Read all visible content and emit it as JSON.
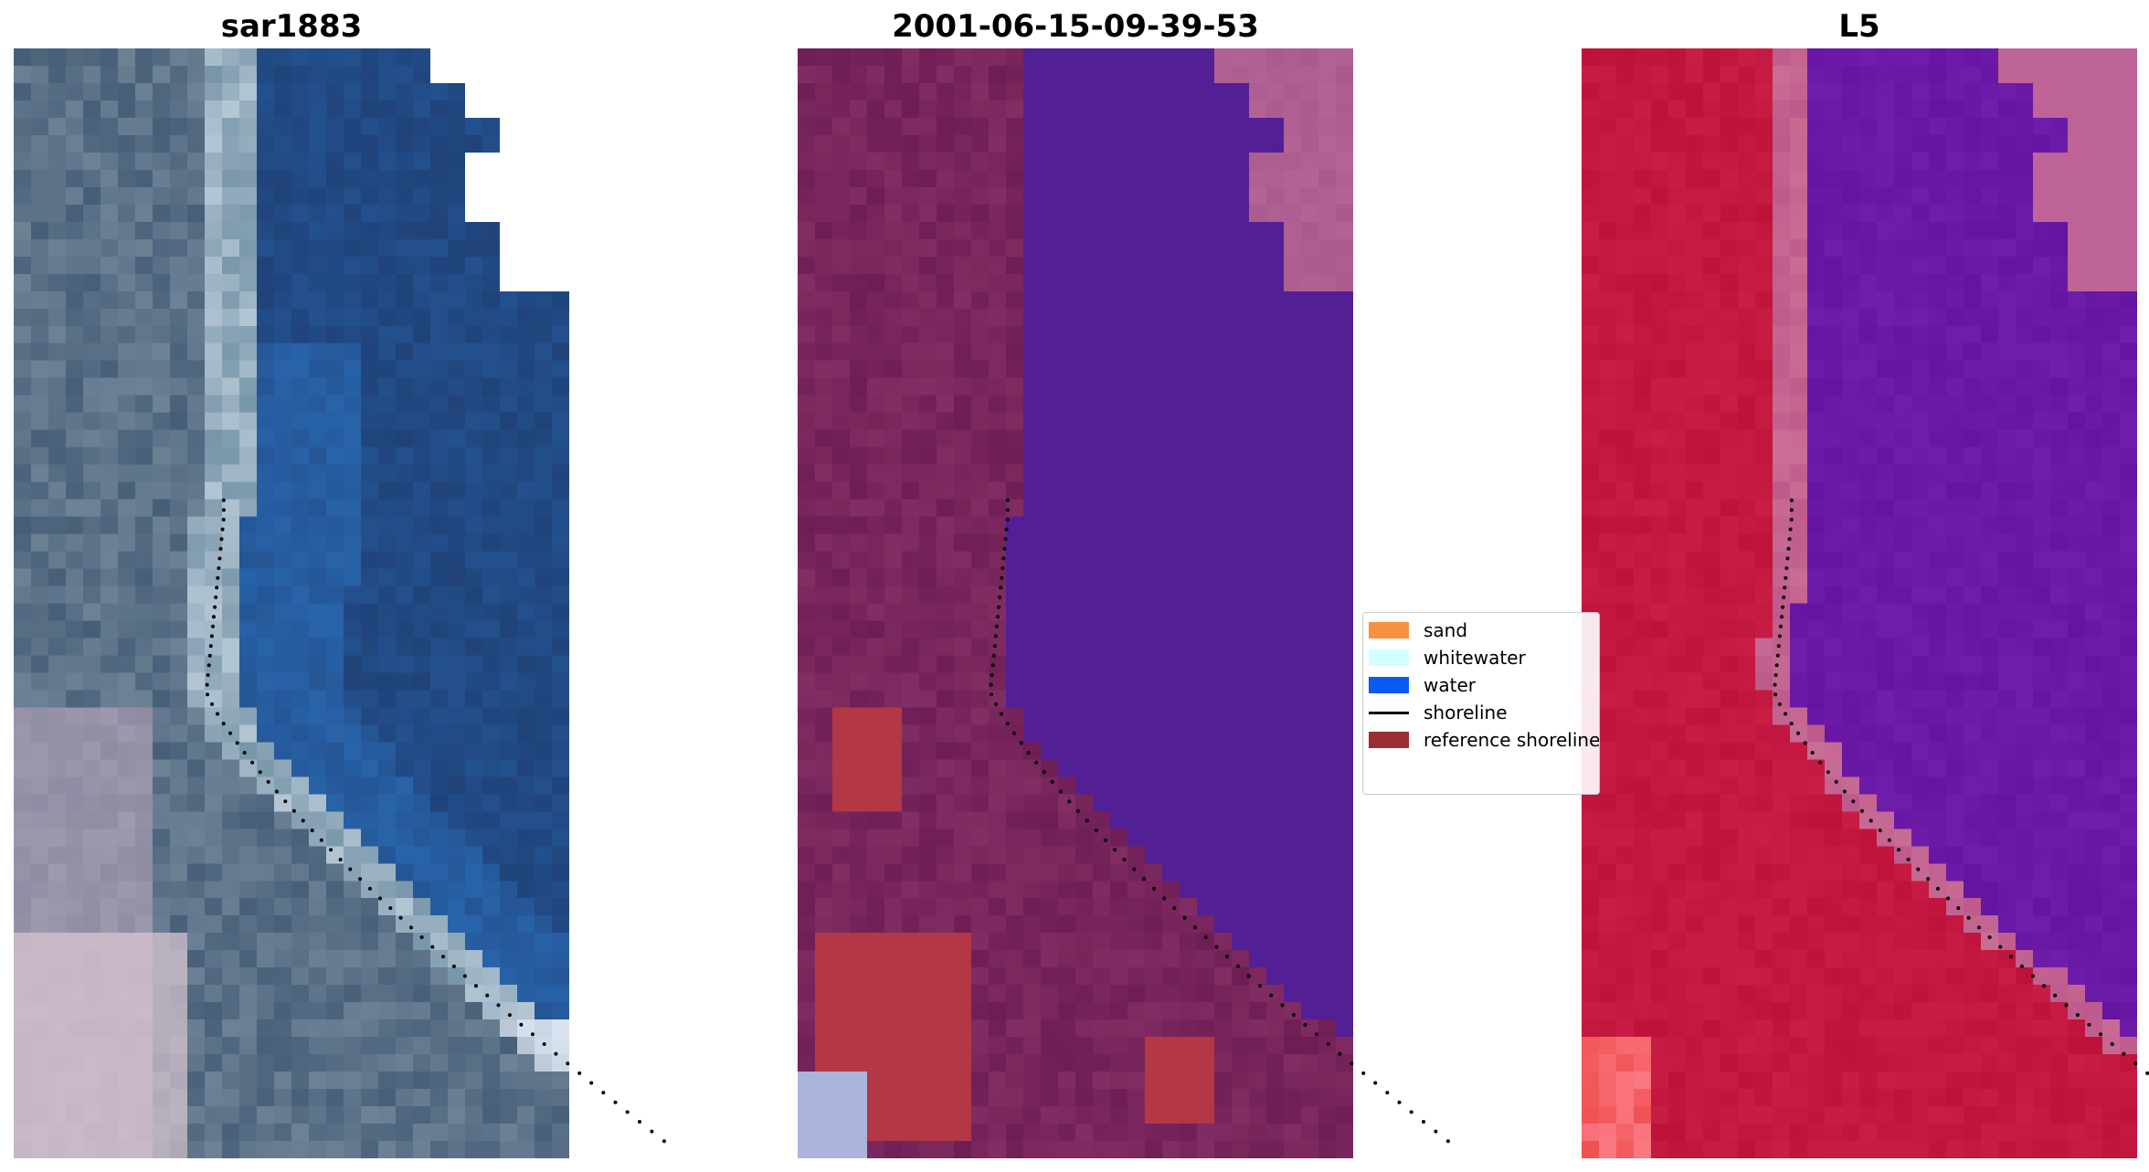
{
  "panels": [
    {
      "title": "sar1883",
      "palette": "rgb"
    },
    {
      "title": "2001-06-15-09-39-53",
      "palette": "classified"
    },
    {
      "title": "L5",
      "palette": "falsecolor"
    }
  ],
  "legend": {
    "items": [
      {
        "label": "sand",
        "kind": "swatch",
        "color": "#f8913f"
      },
      {
        "label": "whitewater",
        "kind": "swatch",
        "color": "#d2ffff"
      },
      {
        "label": "water",
        "kind": "swatch",
        "color": "#0a5af5"
      },
      {
        "label": "shoreline",
        "kind": "line",
        "color": "#000000"
      },
      {
        "label": "reference shoreline",
        "kind": "swatch",
        "color": "#9a2e33"
      }
    ]
  },
  "colors": {
    "water_rgb": "#1f3b6e",
    "land_rgb": "#4f6a86",
    "classified_water": "#531f95",
    "classified_land": "#702059",
    "falsecolor_land": "#c1123b",
    "falsecolor_water": "#6a16a4",
    "nodata": "#ffffff"
  }
}
